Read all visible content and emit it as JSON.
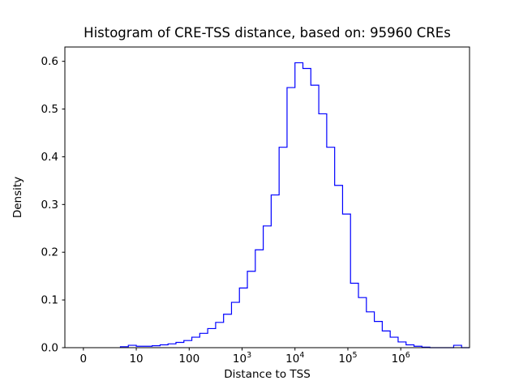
{
  "chart_data": {
    "type": "histogram",
    "title": "Histogram of CRE-TSS distance, based on: 95960 CREs",
    "xlabel": "Distance to TSS",
    "ylabel": "Density",
    "x_scale": "symlog",
    "line_color": "#0000ff",
    "frame_color": "#000000",
    "ylim": [
      0,
      0.63
    ],
    "xlim_u": [
      -0.35,
      7.3
    ],
    "yticks": [
      "0.0",
      "0.1",
      "0.2",
      "0.3",
      "0.4",
      "0.5",
      "0.6"
    ],
    "xticks": [
      {
        "u": 0,
        "label": "0"
      },
      {
        "u": 1,
        "label": "10"
      },
      {
        "u": 2,
        "label": "100"
      },
      {
        "u": 3,
        "label": "10",
        "exp": "3"
      },
      {
        "u": 4,
        "label": "10",
        "exp": "4"
      },
      {
        "u": 5,
        "label": "10",
        "exp": "5"
      },
      {
        "u": 6,
        "label": "10",
        "exp": "6"
      }
    ],
    "bins_log10": {
      "start": 0.7,
      "width": 0.15,
      "count": 44
    },
    "densities": [
      0.002,
      0.005,
      0.003,
      0.003,
      0.004,
      0.006,
      0.008,
      0.011,
      0.015,
      0.022,
      0.03,
      0.04,
      0.053,
      0.07,
      0.095,
      0.125,
      0.16,
      0.205,
      0.255,
      0.32,
      0.42,
      0.545,
      0.597,
      0.585,
      0.55,
      0.49,
      0.42,
      0.34,
      0.28,
      0.135,
      0.105,
      0.075,
      0.055,
      0.035,
      0.022,
      0.012,
      0.006,
      0.003,
      0.001,
      0.0,
      0.0,
      0.0,
      0.005,
      0.0
    ]
  }
}
